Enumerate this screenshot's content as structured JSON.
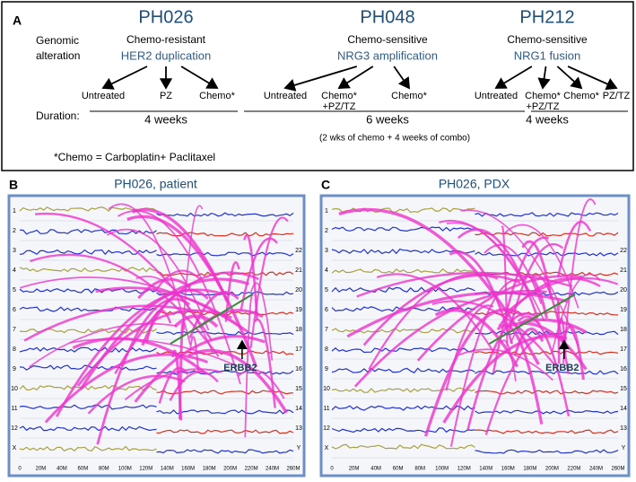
{
  "panel_a": {
    "label": "A",
    "row_labels": {
      "alteration": [
        "Genomic",
        "alteration"
      ],
      "duration": "Duration:"
    },
    "models": [
      {
        "name": "PH026",
        "sensitivity": "Chemo-resistant",
        "alteration": "HER2 duplication",
        "arms": [
          [
            "Untreated"
          ],
          [
            "PZ"
          ],
          [
            "Chemo*"
          ]
        ],
        "duration": "4 weeks"
      },
      {
        "name": "PH048",
        "sensitivity": "Chemo-sensitive",
        "alteration": "NRG3 amplification",
        "arms": [
          [
            "Untreated"
          ],
          [
            "Chemo*",
            "+PZ/TZ"
          ],
          [
            "Chemo*"
          ]
        ],
        "duration": "6 weeks"
      },
      {
        "name": "PH212",
        "sensitivity": "Chemo-sensitive",
        "alteration": "NRG1 fusion",
        "arms": [
          [
            "Untreated"
          ],
          [
            "Chemo*",
            "+PZ/TZ"
          ],
          [
            "Chemo*"
          ],
          [
            "PZ/TZ"
          ]
        ],
        "duration": "4 weeks"
      }
    ],
    "note": "(2 wks of chemo + 4 weeks of combo)",
    "footnote": "*Chemo = Carboplatin+ Paclitaxel"
  },
  "panels": [
    {
      "label": "B",
      "title": "PH026, patient",
      "annotation": "ERBB2"
    },
    {
      "label": "C",
      "title": "PH026, PDX",
      "annotation": "ERBB2"
    }
  ],
  "genome_plot": {
    "left_labels": [
      "1",
      "2",
      "3",
      "4",
      "5",
      "6",
      "7",
      "8",
      "9",
      "10",
      "11",
      "12",
      "X"
    ],
    "right_labels": [
      "22",
      "21",
      "20",
      "19",
      "18",
      "17",
      "16",
      "15",
      "14",
      "13",
      "Y"
    ],
    "x_ticks": [
      "0",
      "20M",
      "40M",
      "60M",
      "80M",
      "100M",
      "120M",
      "140M",
      "160M",
      "180M",
      "200M",
      "220M",
      "240M",
      "260M"
    ]
  }
}
